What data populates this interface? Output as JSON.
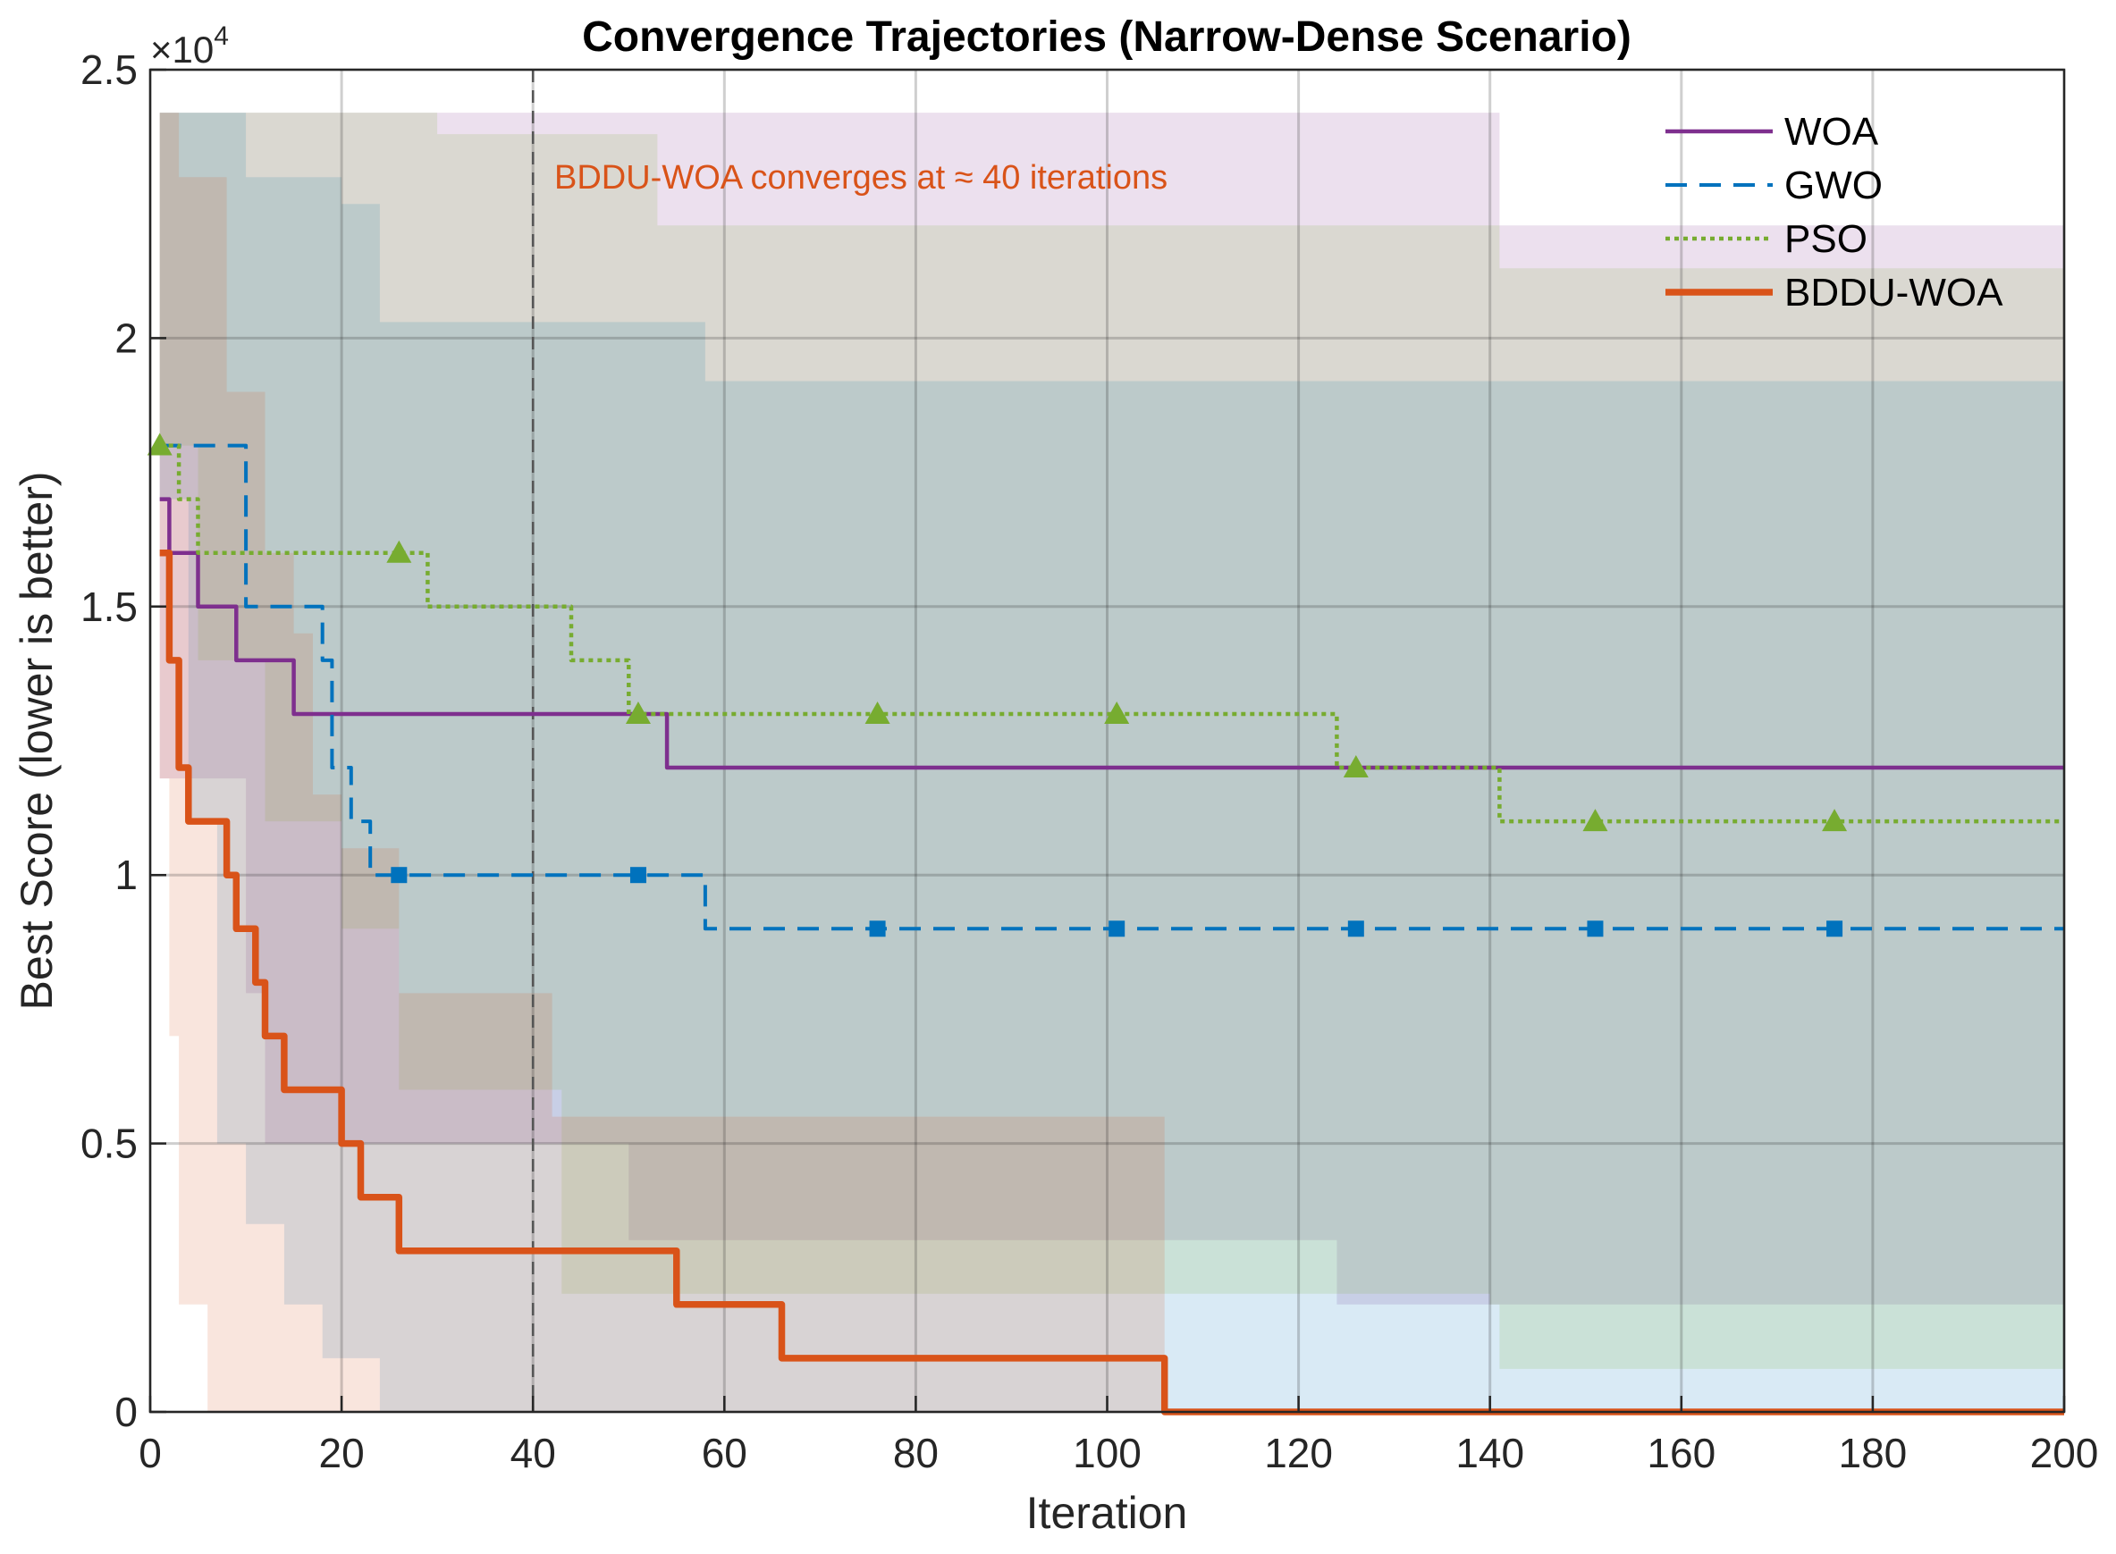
{
  "chart_data": {
    "type": "line",
    "title": "Convergence Trajectories (Narrow-Dense Scenario)",
    "xlabel": "Iteration",
    "ylabel": "Best Score (lower is better)",
    "xlim": [
      0,
      200
    ],
    "ylim": [
      0,
      25000
    ],
    "xticks": [
      0,
      20,
      40,
      60,
      80,
      100,
      120,
      140,
      160,
      180,
      200
    ],
    "yticks": [
      0,
      0.5,
      1,
      1.5,
      2,
      2.5
    ],
    "y_exponent_label": "×10",
    "y_exponent": "4",
    "grid": true,
    "legend_position": "top-right",
    "annotation": {
      "text": "BDDU-WOA converges at ≈ 40 iterations",
      "x": 40,
      "color": "#d95319"
    },
    "series": [
      {
        "name": "WOA",
        "color": "#7e2f8e",
        "style": "solid",
        "marker": "none",
        "line": [
          [
            1,
            17000
          ],
          [
            2,
            16000
          ],
          [
            5,
            15000
          ],
          [
            9,
            14000
          ],
          [
            15,
            13000
          ],
          [
            53,
            13000
          ],
          [
            54,
            12000
          ],
          [
            200,
            12000
          ]
        ],
        "band_upper": [
          [
            1,
            24200
          ],
          [
            140,
            24200
          ],
          [
            141,
            22100
          ],
          [
            200,
            22100
          ]
        ],
        "band_lower": [
          [
            1,
            11800
          ],
          [
            10,
            7800
          ],
          [
            12,
            5000
          ],
          [
            40,
            5000
          ],
          [
            50,
            3200
          ],
          [
            122,
            3200
          ],
          [
            124,
            2000
          ],
          [
            200,
            2000
          ]
        ]
      },
      {
        "name": "GWO",
        "color": "#0072bd",
        "style": "dashed",
        "marker": "square",
        "line": [
          [
            1,
            18000
          ],
          [
            7,
            18000
          ],
          [
            10,
            15000
          ],
          [
            18,
            14000
          ],
          [
            19,
            12000
          ],
          [
            21,
            11000
          ],
          [
            23,
            10000
          ],
          [
            57,
            10000
          ],
          [
            58,
            9000
          ],
          [
            200,
            9000
          ]
        ],
        "band_upper": [
          [
            1,
            24200
          ],
          [
            6,
            24200
          ],
          [
            10,
            23000
          ],
          [
            20,
            22500
          ],
          [
            24,
            20300
          ],
          [
            56,
            20300
          ],
          [
            58,
            19200
          ],
          [
            200,
            19200
          ]
        ],
        "band_lower": [
          [
            1,
            17000
          ],
          [
            4,
            11000
          ],
          [
            7,
            5000
          ],
          [
            10,
            3500
          ],
          [
            14,
            2000
          ],
          [
            18,
            1000
          ],
          [
            24,
            0
          ],
          [
            200,
            0
          ]
        ]
      },
      {
        "name": "PSO",
        "color": "#77ac30",
        "style": "dotted",
        "marker": "triangle",
        "line": [
          [
            1,
            18000
          ],
          [
            3,
            17000
          ],
          [
            5,
            16000
          ],
          [
            28,
            16000
          ],
          [
            29,
            15000
          ],
          [
            43,
            15000
          ],
          [
            44,
            14000
          ],
          [
            49,
            14000
          ],
          [
            50,
            13000
          ],
          [
            123,
            13000
          ],
          [
            124,
            12000
          ],
          [
            140,
            12000
          ],
          [
            141,
            11000
          ],
          [
            200,
            11000
          ]
        ],
        "band_upper": [
          [
            1,
            24200
          ],
          [
            28,
            24200
          ],
          [
            30,
            23800
          ],
          [
            43,
            23800
          ],
          [
            53,
            22100
          ],
          [
            122,
            22100
          ],
          [
            140,
            22100
          ],
          [
            141,
            21300
          ],
          [
            200,
            21300
          ]
        ],
        "band_lower": [
          [
            1,
            18000
          ],
          [
            5,
            14000
          ],
          [
            12,
            11000
          ],
          [
            20,
            9000
          ],
          [
            26,
            6000
          ],
          [
            40,
            6000
          ],
          [
            43,
            2200
          ],
          [
            122,
            2200
          ],
          [
            140,
            2000
          ],
          [
            141,
            800
          ],
          [
            200,
            800
          ]
        ]
      },
      {
        "name": "BDDU-WOA",
        "color": "#d95319",
        "style": "solid",
        "marker": "none",
        "line": [
          [
            1,
            16000
          ],
          [
            2,
            14000
          ],
          [
            3,
            12000
          ],
          [
            4,
            11000
          ],
          [
            6,
            11000
          ],
          [
            8,
            10000
          ],
          [
            9,
            9000
          ],
          [
            11,
            8000
          ],
          [
            12,
            7000
          ],
          [
            14,
            6000
          ],
          [
            19,
            6000
          ],
          [
            20,
            5000
          ],
          [
            22,
            4000
          ],
          [
            25,
            4000
          ],
          [
            26,
            3000
          ],
          [
            54,
            3000
          ],
          [
            55,
            2000
          ],
          [
            65,
            2000
          ],
          [
            66,
            1000
          ],
          [
            105,
            1000
          ],
          [
            106,
            0
          ],
          [
            200,
            0
          ]
        ],
        "band_upper": [
          [
            1,
            24200
          ],
          [
            3,
            23000
          ],
          [
            8,
            19000
          ],
          [
            12,
            16000
          ],
          [
            15,
            14500
          ],
          [
            17,
            11500
          ],
          [
            20,
            10500
          ],
          [
            26,
            7800
          ],
          [
            40,
            7800
          ],
          [
            42,
            5500
          ],
          [
            65,
            5500
          ],
          [
            105,
            5500
          ],
          [
            106,
            0
          ],
          [
            200,
            0
          ]
        ],
        "band_lower": [
          [
            1,
            11800
          ],
          [
            2,
            7000
          ],
          [
            3,
            2000
          ],
          [
            6,
            0
          ],
          [
            200,
            0
          ]
        ]
      }
    ]
  }
}
